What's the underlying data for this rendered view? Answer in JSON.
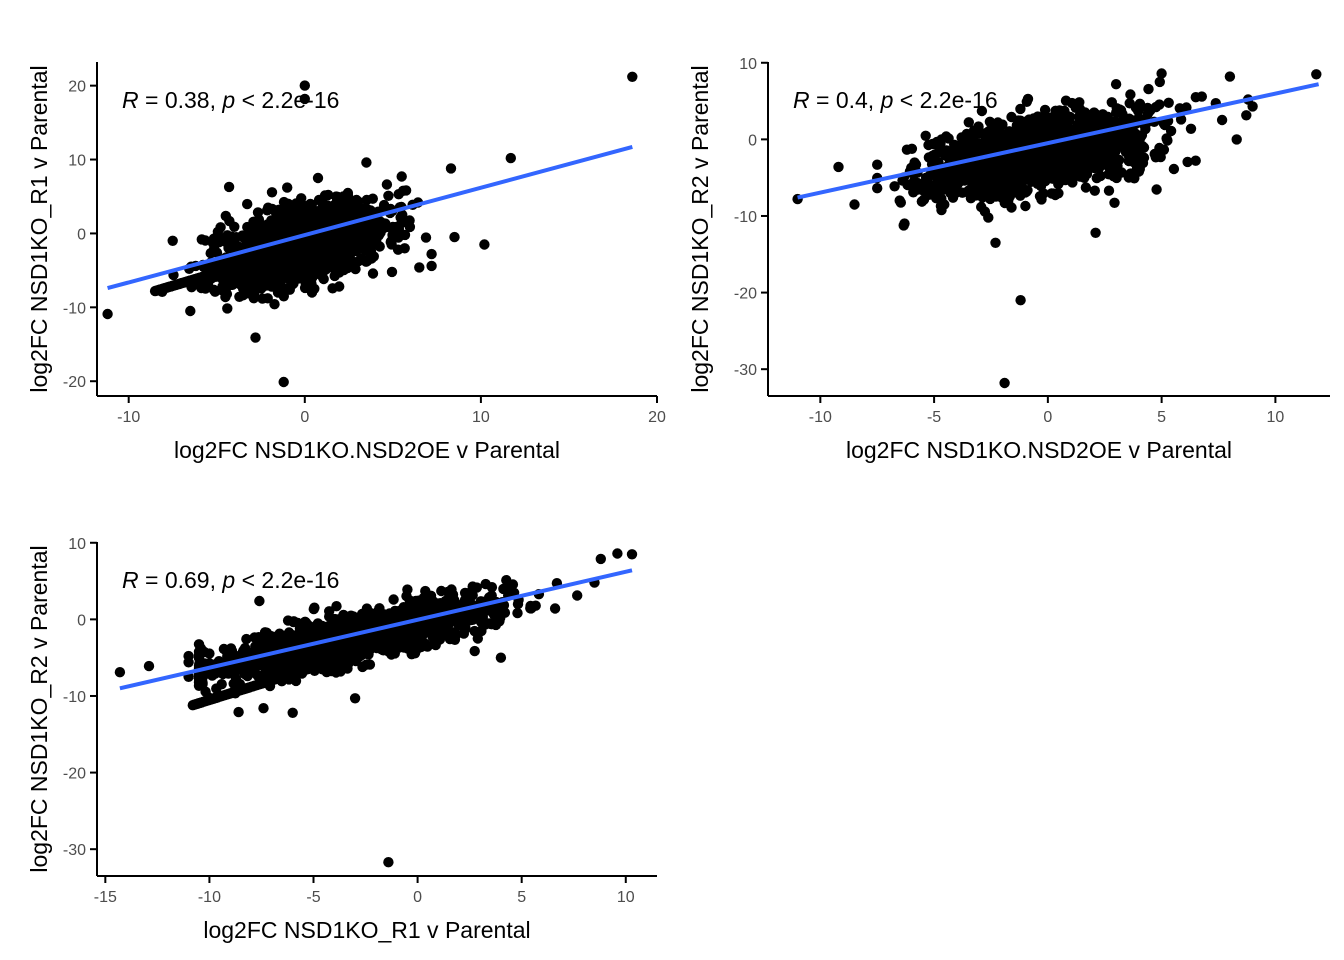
{
  "colors": {
    "point": "#000000",
    "fit_line": "#3366FF",
    "axis": "#000000",
    "tick_label": "#4d4d4d"
  },
  "chart_data": [
    {
      "type": "scatter",
      "xlabel": "log2FC NSD1KO.NSD2OE v Parental",
      "ylabel": "log2FC NSD1KO_R1 v Parental",
      "annotation": {
        "r_symbol": "R",
        "r_value": " = 0.38, ",
        "p_symbol": "p",
        "p_value": " < 2.2e-16"
      },
      "xlim": [
        -11.8,
        20.0
      ],
      "ylim": [
        -22.0,
        23.2
      ],
      "xticks": [
        -10,
        0,
        10,
        20
      ],
      "yticks": [
        -20,
        -10,
        0,
        10,
        20
      ],
      "fit_line": {
        "x": [
          -11.2,
          18.6
        ],
        "y": [
          -7.4,
          11.7
        ]
      },
      "cloud": {
        "n": 1500,
        "x_center": -0.2,
        "x_sd": 2.3,
        "slope": 0.64,
        "intercept": -1.4,
        "resid_sd": 2.5,
        "x_min": -8,
        "x_max": 7.5,
        "y_min": -13,
        "y_max": 9
      },
      "band": {
        "x_from": -8.5,
        "x_to": -3.0,
        "y_at_from": -7.8,
        "y_at_to": -3.9
      },
      "points": [
        [
          -11.2,
          -10.9
        ],
        [
          18.6,
          21.2
        ],
        [
          0.0,
          20.0
        ],
        [
          0.0,
          18.2
        ],
        [
          11.7,
          10.2
        ],
        [
          10.2,
          -1.5
        ],
        [
          -1.2,
          -20.1
        ],
        [
          -2.8,
          -14.1
        ],
        [
          8.3,
          8.8
        ],
        [
          8.5,
          -0.5
        ],
        [
          7.2,
          -2.8
        ],
        [
          7.2,
          -4.4
        ],
        [
          6.5,
          -4.6
        ],
        [
          -6.5,
          -10.5
        ],
        [
          -8.1,
          -7.9
        ],
        [
          -7.5,
          -1.0
        ],
        [
          -4.3,
          6.3
        ],
        [
          5.5,
          7.7
        ],
        [
          3.5,
          9.6
        ],
        [
          -1.0,
          6.2
        ],
        [
          4.3,
          0.1
        ],
        [
          5.3,
          -2.2
        ]
      ]
    },
    {
      "type": "scatter",
      "xlabel": "log2FC NSD1KO.NSD2OE v Parental",
      "ylabel": "log2FC NSD1KO_R2 v Parental",
      "annotation": {
        "r_symbol": "R",
        "r_value": " = 0.4, ",
        "p_symbol": "p",
        "p_value": " < 2.2e-16"
      },
      "xlim": [
        -12.3,
        12.4
      ],
      "ylim": [
        -33.5,
        10.1
      ],
      "xticks": [
        -10,
        -5,
        0,
        5,
        10
      ],
      "yticks": [
        -30,
        -20,
        -10,
        0,
        10
      ],
      "fit_line": {
        "x": [
          -11.0,
          11.9
        ],
        "y": [
          -7.6,
          7.2
        ]
      },
      "cloud": {
        "n": 1500,
        "x_center": -0.5,
        "x_sd": 2.4,
        "slope": 0.55,
        "intercept": -1.7,
        "resid_sd": 2.3,
        "x_min": -7.5,
        "x_max": 9,
        "y_min": -13,
        "y_max": 7.5
      },
      "band": null,
      "points": [
        [
          -11.0,
          -7.8
        ],
        [
          11.8,
          8.5
        ],
        [
          8.0,
          8.2
        ],
        [
          -1.9,
          -31.8
        ],
        [
          -1.2,
          -21.0
        ],
        [
          -9.2,
          -3.6
        ],
        [
          -8.5,
          -8.5
        ],
        [
          -6.3,
          -11.0
        ],
        [
          -7.5,
          -3.3
        ],
        [
          -2.3,
          -13.5
        ],
        [
          4.0,
          -4.2
        ],
        [
          5.0,
          8.6
        ],
        [
          2.1,
          -12.2
        ],
        [
          9.0,
          4.3
        ],
        [
          8.3,
          0.0
        ],
        [
          -4.7,
          -8.7
        ],
        [
          6.5,
          5.5
        ],
        [
          3.0,
          7.2
        ],
        [
          8.8,
          5.2
        ]
      ]
    },
    {
      "type": "scatter",
      "xlabel": "log2FC NSD1KO_R1 v Parental",
      "ylabel": "log2FC NSD1KO_R2 v Parental",
      "annotation": {
        "r_symbol": "R",
        "r_value": " = 0.69, ",
        "p_symbol": "p",
        "p_value": " < 2.2e-16"
      },
      "xlim": [
        -15.4,
        11.5
      ],
      "ylim": [
        -33.5,
        10.1
      ],
      "xticks": [
        -15,
        -10,
        -5,
        0,
        5,
        10
      ],
      "yticks": [
        -30,
        -20,
        -10,
        0,
        10
      ],
      "fit_line": {
        "x": [
          -14.3,
          10.3
        ],
        "y": [
          -9.0,
          6.4
        ]
      },
      "cloud": {
        "n": 1700,
        "x_center": -3.0,
        "x_sd": 3.2,
        "slope": 0.6,
        "intercept": -0.5,
        "resid_sd": 1.5,
        "x_min": -10.5,
        "x_max": 8.5,
        "y_min": -12,
        "y_max": 7
      },
      "band": {
        "x_from": -10.8,
        "x_to": -4.0,
        "y_at_from": -11.2,
        "y_at_to": -5.4
      },
      "points": [
        [
          -14.3,
          -6.9
        ],
        [
          -12.9,
          -6.1
        ],
        [
          -1.4,
          -31.7
        ],
        [
          10.3,
          8.5
        ],
        [
          9.6,
          8.6
        ],
        [
          8.8,
          7.9
        ],
        [
          -11.0,
          -7.5
        ],
        [
          -8.6,
          -12.1
        ],
        [
          -7.4,
          -11.6
        ],
        [
          -6.0,
          -12.2
        ],
        [
          -8.5,
          -4.9
        ],
        [
          -7.6,
          2.4
        ],
        [
          -3.0,
          -10.3
        ],
        [
          4.0,
          -5.0
        ],
        [
          -11.0,
          -4.8
        ],
        [
          -11.0,
          -5.6
        ]
      ]
    }
  ]
}
